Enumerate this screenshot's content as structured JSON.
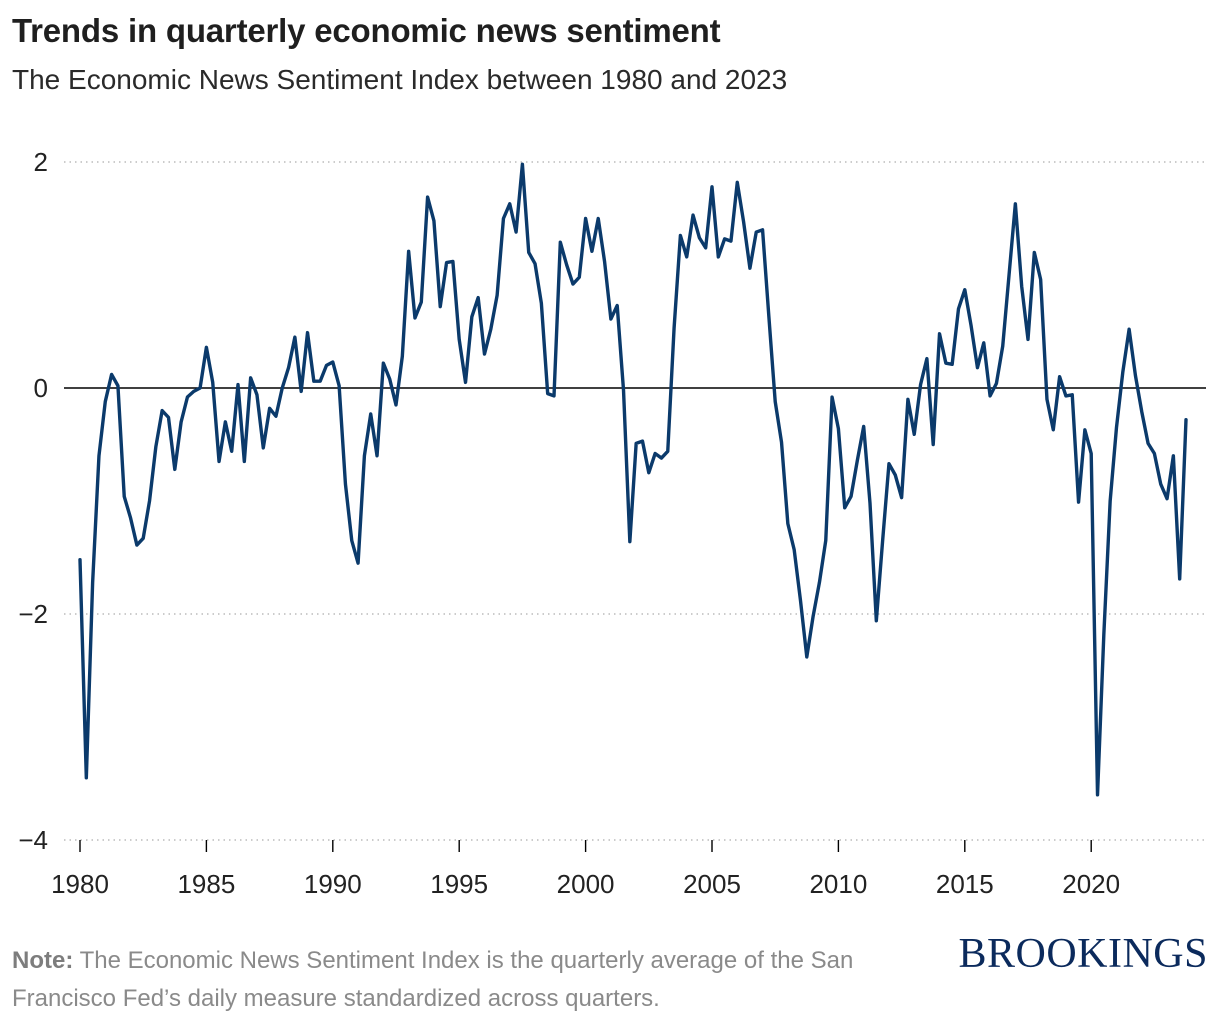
{
  "title": "Trends in quarterly economic news sentiment",
  "subtitle": "The Economic News Sentiment Index between 1980 and 2023",
  "note": {
    "label": "Note:",
    "text": " The Economic News Sentiment Index is the quarterly average of the San Francisco Fed’s daily measure standardized across quarters."
  },
  "logo": "BROOKINGS",
  "colors": {
    "line": "#0b3a6b",
    "zero_line": "#000000",
    "grid": "#bbbbbb",
    "logo": "#0b2a5c"
  },
  "chart_data": {
    "type": "line",
    "title": "Trends in quarterly economic news sentiment",
    "subtitle": "The Economic News Sentiment Index between 1980 and 2023",
    "xlabel": "",
    "ylabel": "",
    "xlim": [
      1980,
      2023.75
    ],
    "ylim": [
      -4,
      2
    ],
    "x_ticks": [
      1980,
      1985,
      1990,
      1995,
      2000,
      2005,
      2010,
      2015,
      2020
    ],
    "x_tick_labels": [
      "1980",
      "1985",
      "1990",
      "1995",
      "2000",
      "2005",
      "2010",
      "2015",
      "2020"
    ],
    "y_ticks": [
      -4,
      -2,
      0,
      2
    ],
    "y_tick_labels": [
      "−4",
      "−2",
      "0",
      "2"
    ],
    "grid": "horizontal dotted",
    "legend": "none",
    "x_start": 1980,
    "x_step": 0.25,
    "series": [
      {
        "values": [
          -1.52,
          -3.45,
          -1.72,
          -0.6,
          -0.12,
          0.12,
          0.02,
          -0.96,
          -1.15,
          -1.39,
          -1.33,
          -1.0,
          -0.52,
          -0.2,
          -0.26,
          -0.72,
          -0.3,
          -0.08,
          -0.03,
          0.0,
          0.36,
          0.05,
          -0.65,
          -0.3,
          -0.56,
          0.03,
          -0.65,
          0.09,
          -0.06,
          -0.53,
          -0.18,
          -0.25,
          0.0,
          0.18,
          0.45,
          -0.03,
          0.49,
          0.06,
          0.06,
          0.2,
          0.23,
          0.02,
          -0.85,
          -1.35,
          -1.55,
          -0.6,
          -0.23,
          -0.6,
          0.22,
          0.08,
          -0.15,
          0.28,
          1.21,
          0.62,
          0.76,
          1.69,
          1.48,
          0.72,
          1.11,
          1.12,
          0.43,
          0.05,
          0.63,
          0.8,
          0.3,
          0.52,
          0.82,
          1.5,
          1.63,
          1.38,
          1.98,
          1.2,
          1.1,
          0.75,
          -0.05,
          -0.07,
          1.29,
          1.09,
          0.92,
          0.98,
          1.5,
          1.21,
          1.5,
          1.12,
          0.61,
          0.73,
          -0.02,
          -1.36,
          -0.49,
          -0.47,
          -0.75,
          -0.58,
          -0.62,
          -0.56,
          0.53,
          1.35,
          1.16,
          1.53,
          1.33,
          1.24,
          1.78,
          1.16,
          1.32,
          1.3,
          1.82,
          1.47,
          1.06,
          1.38,
          1.4,
          0.63,
          -0.12,
          -0.48,
          -1.2,
          -1.43,
          -1.88,
          -2.38,
          -2.02,
          -1.72,
          -1.35,
          -0.08,
          -0.36,
          -1.06,
          -0.96,
          -0.64,
          -0.34,
          -1.02,
          -2.06,
          -1.35,
          -0.67,
          -0.77,
          -0.97,
          -0.1,
          -0.41,
          0.03,
          0.26,
          -0.5,
          0.48,
          0.22,
          0.21,
          0.7,
          0.87,
          0.55,
          0.18,
          0.4,
          -0.07,
          0.04,
          0.37,
          1.0,
          1.63,
          0.9,
          0.43,
          1.2,
          0.96,
          -0.1,
          -0.37,
          0.1,
          -0.07,
          -0.06,
          -1.01,
          -0.37,
          -0.58,
          -3.6,
          -2.18,
          -1.0,
          -0.35,
          0.14,
          0.52,
          0.11,
          -0.21,
          -0.49,
          -0.58,
          -0.85,
          -0.98,
          -0.6,
          -1.69,
          -0.28
        ]
      }
    ]
  }
}
